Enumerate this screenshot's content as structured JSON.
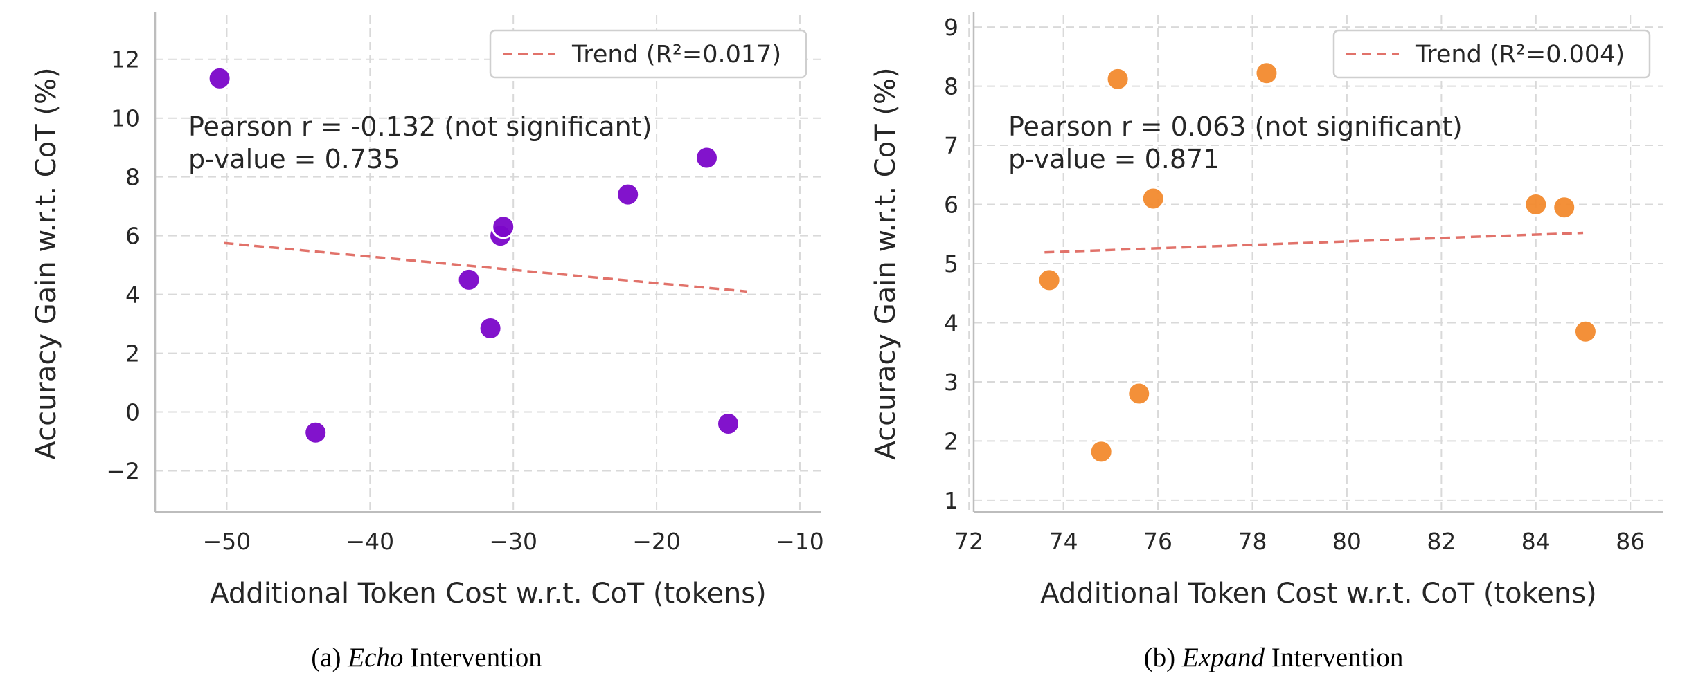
{
  "chart_data": [
    {
      "type": "scatter",
      "xlabel": "Additional Token Cost w.r.t. CoT (tokens)",
      "ylabel": "Accuracy Gain w.r.t. CoT (%)",
      "xlim": [
        -55,
        -8.5
      ],
      "ylim": [
        -3.4,
        13.5
      ],
      "xticks": [
        -50,
        -40,
        -30,
        -20,
        -10
      ],
      "yticks": [
        -2,
        0,
        2,
        4,
        6,
        8,
        10,
        12
      ],
      "xtick_labels": [
        "−50",
        "−40",
        "−30",
        "−20",
        "−10"
      ],
      "ytick_labels": [
        "−2",
        "0",
        "2",
        "4",
        "6",
        "8",
        "10",
        "12"
      ],
      "grid": true,
      "color": "#7b06c9",
      "trend_color": "#e1726a",
      "points": [
        {
          "x": -50.5,
          "y": 11.35
        },
        {
          "x": -43.8,
          "y": -0.7
        },
        {
          "x": -33.1,
          "y": 4.5
        },
        {
          "x": -31.6,
          "y": 2.85
        },
        {
          "x": -30.9,
          "y": 6.0
        },
        {
          "x": -30.7,
          "y": 6.3
        },
        {
          "x": -22.0,
          "y": 7.4
        },
        {
          "x": -16.5,
          "y": 8.65
        },
        {
          "x": -15.0,
          "y": -0.4
        }
      ],
      "trend": {
        "x": [
          -50.2,
          -13.7
        ],
        "y": [
          5.75,
          4.1
        ]
      },
      "legend": {
        "label": "Trend (R²=0.017)",
        "position": "upper right"
      },
      "annotation": [
        "Pearson r = -0.132 (not significant)",
        "p-value = 0.735"
      ],
      "caption_prefix": "(a) ",
      "caption_italic": "Echo",
      "caption_suffix": " Intervention"
    },
    {
      "type": "scatter",
      "xlabel": "Additional Token Cost w.r.t. CoT (tokens)",
      "ylabel": "Accuracy Gain w.r.t. CoT (%)",
      "xlim": [
        72.1,
        86.7
      ],
      "ylim": [
        0.8,
        9.2
      ],
      "xticks": [
        72,
        74,
        76,
        78,
        80,
        82,
        84,
        86
      ],
      "yticks": [
        1,
        2,
        3,
        4,
        5,
        6,
        7,
        8,
        9
      ],
      "xtick_labels": [
        "72",
        "74",
        "76",
        "78",
        "80",
        "82",
        "84",
        "86"
      ],
      "ytick_labels": [
        "1",
        "2",
        "3",
        "4",
        "5",
        "6",
        "7",
        "8",
        "9"
      ],
      "grid": true,
      "color": "#f28a2e",
      "trend_color": "#e1726a",
      "points": [
        {
          "x": 73.7,
          "y": 4.72
        },
        {
          "x": 74.8,
          "y": 1.82
        },
        {
          "x": 75.15,
          "y": 8.12
        },
        {
          "x": 75.6,
          "y": 2.8
        },
        {
          "x": 75.9,
          "y": 6.1
        },
        {
          "x": 78.3,
          "y": 8.22
        },
        {
          "x": 84.0,
          "y": 6.0
        },
        {
          "x": 84.6,
          "y": 5.95
        },
        {
          "x": 85.05,
          "y": 3.85
        }
      ],
      "trend": {
        "x": [
          73.6,
          85.0
        ],
        "y": [
          5.19,
          5.52
        ]
      },
      "legend": {
        "label": "Trend (R²=0.004)",
        "position": "upper right"
      },
      "annotation": [
        "Pearson r = 0.063 (not significant)",
        "p-value = 0.871"
      ],
      "caption_prefix": "(b) ",
      "caption_italic": "Expand",
      "caption_suffix": " Intervention"
    }
  ]
}
